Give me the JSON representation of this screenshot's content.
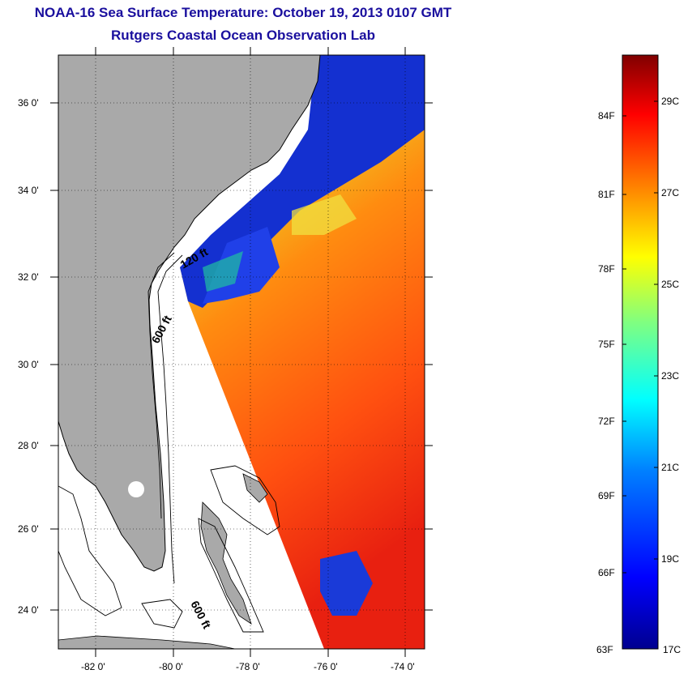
{
  "title": "NOAA-16 Sea Surface Temperature:  October 19, 2013 0107 GMT",
  "subtitle": "Rutgers Coastal Ocean Observation Lab",
  "map": {
    "lat_ticks": [
      "36 0'",
      "34 0'",
      "32 0'",
      "30 0'",
      "28 0'",
      "26 0'",
      "24 0'"
    ],
    "lon_ticks": [
      "-82 0'",
      "-80 0'",
      "-78 0'",
      "-76 0'",
      "-74 0'"
    ],
    "contour_labels": [
      "120 ft",
      "600 ft",
      "600 ft"
    ],
    "colors": {
      "land": "#a9a9a9",
      "water_nodata": "#ffffff",
      "frame": "#000000"
    }
  },
  "colorbar": {
    "f_labels": [
      "84F",
      "81F",
      "78F",
      "75F",
      "72F",
      "69F",
      "66F",
      "63F"
    ],
    "c_labels": [
      "29C",
      "27C",
      "25C",
      "23C",
      "21C",
      "19C",
      "17C"
    ],
    "gradient": [
      "#00008f",
      "#0000ff",
      "#0080ff",
      "#00ffff",
      "#80ff80",
      "#ffff00",
      "#ff8000",
      "#ff0000",
      "#800000"
    ]
  }
}
